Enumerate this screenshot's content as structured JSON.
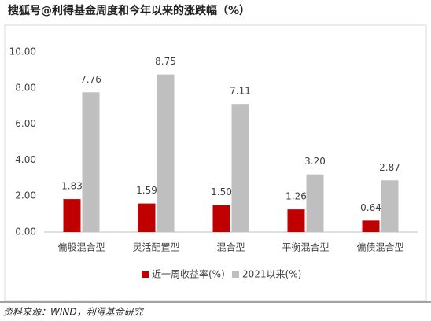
{
  "chart_data": {
    "type": "bar",
    "title": "搜狐号@利得基金周度和今年以来的涨跌幅（%）",
    "categories": [
      "偏股混合型",
      "灵活配置型",
      "混合型",
      "平衡混合型",
      "偏债混合型"
    ],
    "series": [
      {
        "name": "近一周收益率(%)",
        "color": "#c00000",
        "values": [
          1.83,
          1.59,
          1.5,
          1.26,
          0.64
        ],
        "value_labels": [
          "1.83",
          "1.59",
          "1.50",
          "1.26",
          "0.64"
        ]
      },
      {
        "name": "2021以来(%)",
        "color": "#bfbfbf",
        "values": [
          7.76,
          8.75,
          7.11,
          3.2,
          2.87
        ],
        "value_labels": [
          "7.76",
          "8.75",
          "7.11",
          "3.20",
          "2.87"
        ]
      }
    ],
    "ylim": [
      0,
      10
    ],
    "yticks": [
      {
        "value": 0,
        "label": "0.00"
      },
      {
        "value": 2,
        "label": "2.00"
      },
      {
        "value": 4,
        "label": "4.00"
      },
      {
        "value": 6,
        "label": "6.00"
      },
      {
        "value": 8,
        "label": "8.00"
      },
      {
        "value": 10,
        "label": "10.00"
      }
    ],
    "grid": false,
    "legend": "bottom",
    "source": "资料来源：WIND，利得基金研究"
  }
}
